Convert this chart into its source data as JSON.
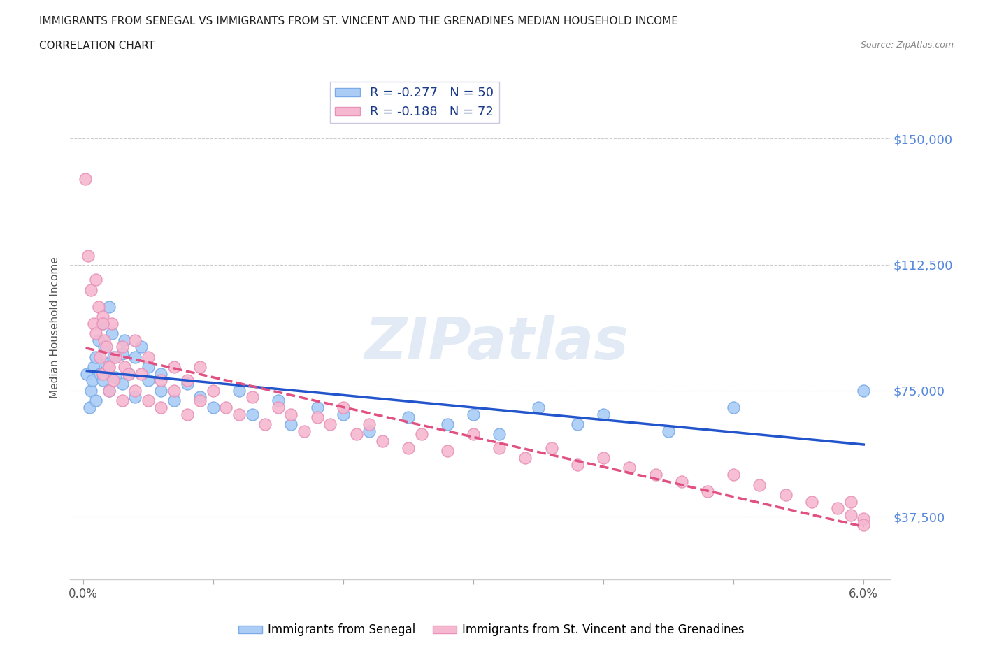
{
  "title_line1": "IMMIGRANTS FROM SENEGAL VS IMMIGRANTS FROM ST. VINCENT AND THE GRENADINES MEDIAN HOUSEHOLD INCOME",
  "title_line2": "CORRELATION CHART",
  "source_text": "Source: ZipAtlas.com",
  "ylabel": "Median Household Income",
  "xlim": [
    -0.001,
    0.062
  ],
  "ylim": [
    18750,
    168750
  ],
  "yticks": [
    37500,
    75000,
    112500,
    150000
  ],
  "ytick_labels": [
    "$37,500",
    "$75,000",
    "$112,500",
    "$150,000"
  ],
  "xtick_positions": [
    0.0,
    0.01,
    0.02,
    0.03,
    0.04,
    0.05,
    0.06
  ],
  "xtick_labels_sparse": [
    "0.0%",
    "",
    "",
    "",
    "",
    "",
    "6.0%"
  ],
  "senegal_color": "#aaccf5",
  "vincent_color": "#f5b8d0",
  "senegal_edge": "#7aaae8",
  "vincent_edge": "#e890b8",
  "trend_blue": "#2255cc",
  "trend_pink": "#e05080",
  "legend_label1": "R = -0.277   N = 50",
  "legend_label2": "R = -0.188   N = 72",
  "bottom_legend1": "Immigrants from Senegal",
  "bottom_legend2": "Immigrants from St. Vincent and the Grenadines",
  "watermark": "ZIPatlas",
  "background_color": "#ffffff",
  "grid_color": "#cccccc",
  "title_color": "#222222",
  "axis_label_color": "#555555",
  "ytick_color": "#5588dd",
  "senegal_x": [
    0.0003,
    0.0005,
    0.0006,
    0.0007,
    0.0008,
    0.001,
    0.001,
    0.0012,
    0.0013,
    0.0015,
    0.0015,
    0.0016,
    0.0018,
    0.002,
    0.002,
    0.0022,
    0.0023,
    0.0025,
    0.003,
    0.003,
    0.0032,
    0.0035,
    0.004,
    0.004,
    0.0045,
    0.005,
    0.005,
    0.006,
    0.006,
    0.007,
    0.008,
    0.009,
    0.01,
    0.012,
    0.013,
    0.015,
    0.016,
    0.018,
    0.02,
    0.022,
    0.025,
    0.028,
    0.03,
    0.032,
    0.035,
    0.038,
    0.04,
    0.045,
    0.05,
    0.06
  ],
  "senegal_y": [
    80000,
    70000,
    75000,
    78000,
    82000,
    85000,
    72000,
    90000,
    80000,
    95000,
    78000,
    88000,
    83000,
    100000,
    75000,
    92000,
    85000,
    79000,
    86000,
    77000,
    90000,
    80000,
    85000,
    73000,
    88000,
    78000,
    82000,
    75000,
    80000,
    72000,
    77000,
    73000,
    70000,
    75000,
    68000,
    72000,
    65000,
    70000,
    68000,
    63000,
    67000,
    65000,
    68000,
    62000,
    70000,
    65000,
    68000,
    63000,
    70000,
    75000
  ],
  "vincent_x": [
    0.0002,
    0.0004,
    0.0006,
    0.0008,
    0.001,
    0.001,
    0.0012,
    0.0013,
    0.0015,
    0.0015,
    0.0016,
    0.0018,
    0.002,
    0.002,
    0.0022,
    0.0023,
    0.0025,
    0.003,
    0.003,
    0.0032,
    0.0035,
    0.004,
    0.004,
    0.0045,
    0.005,
    0.005,
    0.006,
    0.006,
    0.007,
    0.007,
    0.008,
    0.008,
    0.009,
    0.009,
    0.01,
    0.011,
    0.012,
    0.013,
    0.014,
    0.015,
    0.016,
    0.017,
    0.018,
    0.019,
    0.02,
    0.021,
    0.022,
    0.023,
    0.025,
    0.026,
    0.028,
    0.03,
    0.032,
    0.034,
    0.036,
    0.038,
    0.04,
    0.042,
    0.044,
    0.046,
    0.048,
    0.05,
    0.052,
    0.054,
    0.056,
    0.058,
    0.059,
    0.059,
    0.06,
    0.06,
    0.0015,
    0.002
  ],
  "vincent_y": [
    138000,
    115000,
    105000,
    95000,
    108000,
    92000,
    100000,
    85000,
    97000,
    80000,
    90000,
    88000,
    82000,
    75000,
    95000,
    78000,
    85000,
    88000,
    72000,
    82000,
    80000,
    90000,
    75000,
    80000,
    72000,
    85000,
    78000,
    70000,
    82000,
    75000,
    78000,
    68000,
    82000,
    72000,
    75000,
    70000,
    68000,
    73000,
    65000,
    70000,
    68000,
    63000,
    67000,
    65000,
    70000,
    62000,
    65000,
    60000,
    58000,
    62000,
    57000,
    62000,
    58000,
    55000,
    58000,
    53000,
    55000,
    52000,
    50000,
    48000,
    45000,
    50000,
    47000,
    44000,
    42000,
    40000,
    38000,
    42000,
    37000,
    35000,
    95000,
    82000
  ]
}
